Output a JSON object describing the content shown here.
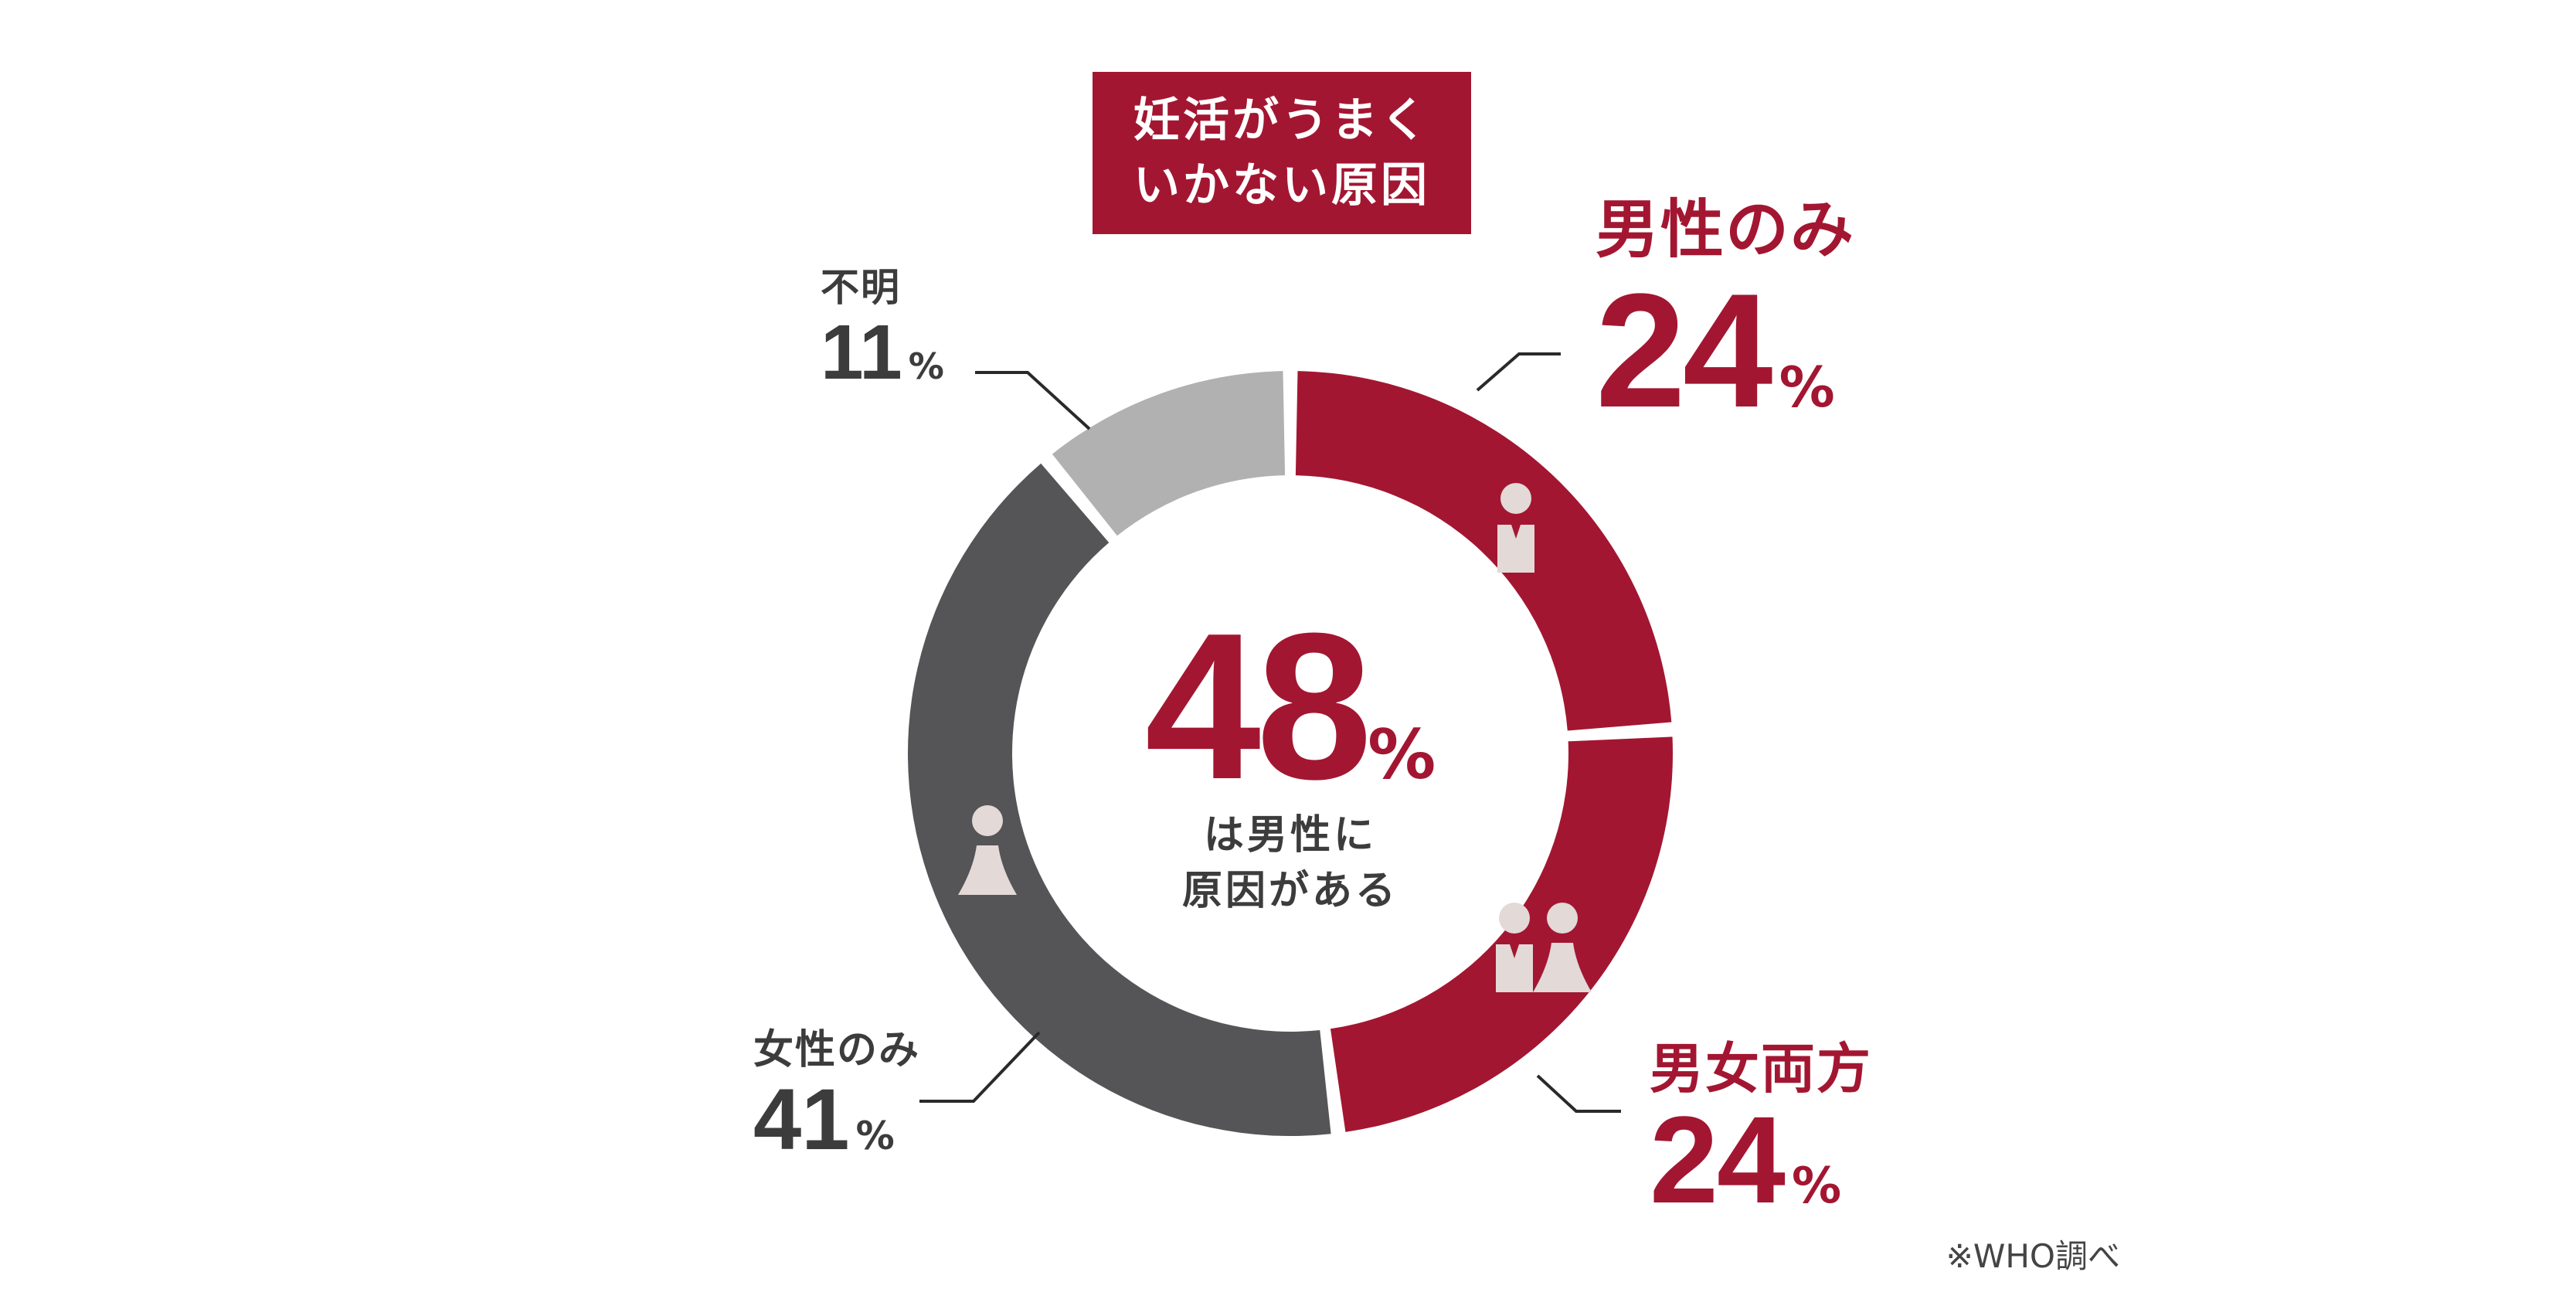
{
  "title": [
    "妊活がうまく",
    "いかない原因"
  ],
  "center": {
    "value": "48",
    "unit": "%",
    "caption": [
      "は男性に",
      "原因がある"
    ]
  },
  "source": "※WHO調べ",
  "chart_data": {
    "type": "pie",
    "variant": "donut",
    "title": "妊活がうまくいかない原因",
    "slices": [
      {
        "label": "男性のみ",
        "value": 24,
        "display": "24",
        "unit": "%",
        "color": "#a31631",
        "icon": "male-person-icon"
      },
      {
        "label": "男女両方",
        "value": 24,
        "display": "24",
        "unit": "%",
        "color": "#a31631",
        "icon": "couple-icon"
      },
      {
        "label": "女性のみ",
        "value": 41,
        "display": "41",
        "unit": "%",
        "color": "#555457",
        "icon": "female-person-icon"
      },
      {
        "label": "不明",
        "value": 11,
        "display": "11",
        "unit": "%",
        "color": "#b1b1b1",
        "icon": ""
      }
    ]
  },
  "colors": {
    "accent": "#a31631",
    "dark": "#555457",
    "light": "#b1b1b1",
    "icon": "#e3d9d7",
    "text": "#3c3c3c"
  }
}
